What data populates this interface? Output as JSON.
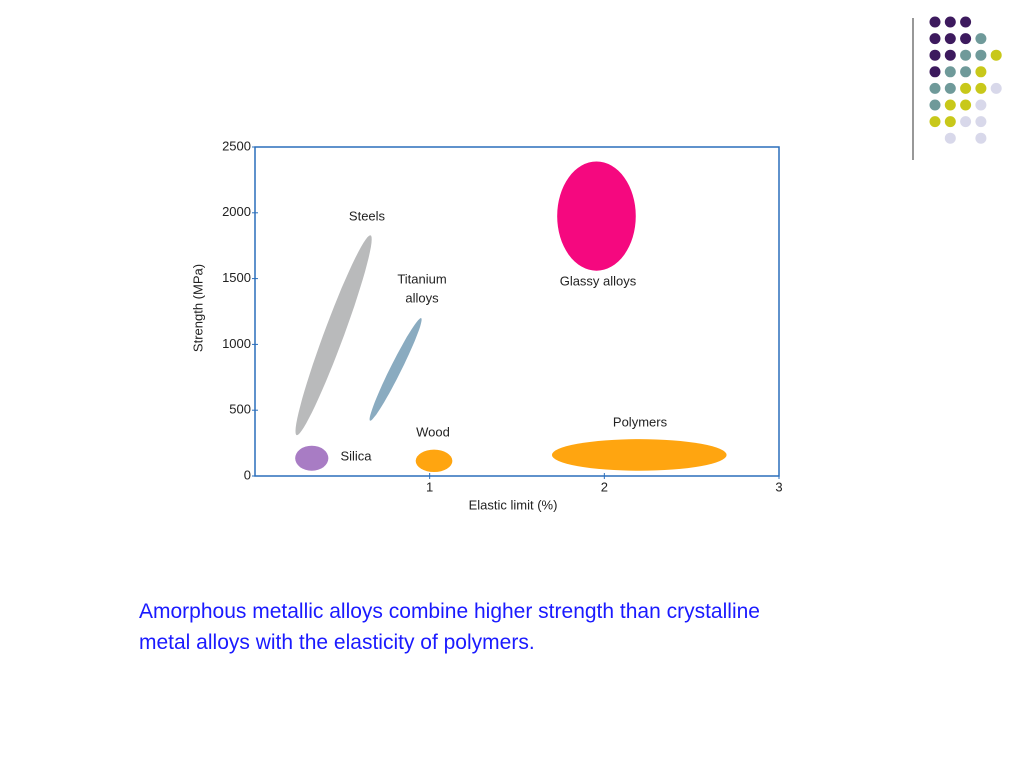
{
  "chart_data": {
    "type": "region",
    "xlabel": "Elastic limit (%)",
    "ylabel": "Strength (MPa)",
    "xlim": [
      0,
      3
    ],
    "xticks": [
      1,
      2,
      3
    ],
    "ylim": [
      0,
      2500
    ],
    "yticks": [
      0,
      500,
      1000,
      1500,
      2000,
      2500
    ],
    "series": [
      {
        "label": [
          "Steels"
        ],
        "color": "#b9babb",
        "tilt": true,
        "x": [
          0.24,
          0.66
        ],
        "y": [
          310,
          1830
        ],
        "width": 0.12
      },
      {
        "label": [
          "Titanium",
          "alloys"
        ],
        "color": "#8aabc0",
        "tilt": true,
        "x": [
          0.66,
          0.95
        ],
        "y": [
          420,
          1200
        ],
        "width": 0.07
      },
      {
        "label": [
          "Glassy alloys"
        ],
        "color": "#f5087f",
        "tilt": false,
        "x": [
          1.73,
          2.18
        ],
        "y": [
          1560,
          2390
        ]
      },
      {
        "label": [
          "Polymers"
        ],
        "color": "#ffa510",
        "tilt": false,
        "x": [
          1.7,
          2.7
        ],
        "y": [
          40,
          280
        ]
      },
      {
        "label": [
          "Wood"
        ],
        "color": "#ffa510",
        "tilt": false,
        "x": [
          0.92,
          1.13
        ],
        "y": [
          30,
          200
        ]
      },
      {
        "label": [
          "Silica"
        ],
        "color": "#a87cc4",
        "tilt": false,
        "x": [
          0.23,
          0.42
        ],
        "y": [
          40,
          230
        ]
      }
    ]
  },
  "caption": [
    "Amorphous metallic alloys combine higher strength than crystalline",
    "metal alloys with the elasticity of polymers."
  ]
}
